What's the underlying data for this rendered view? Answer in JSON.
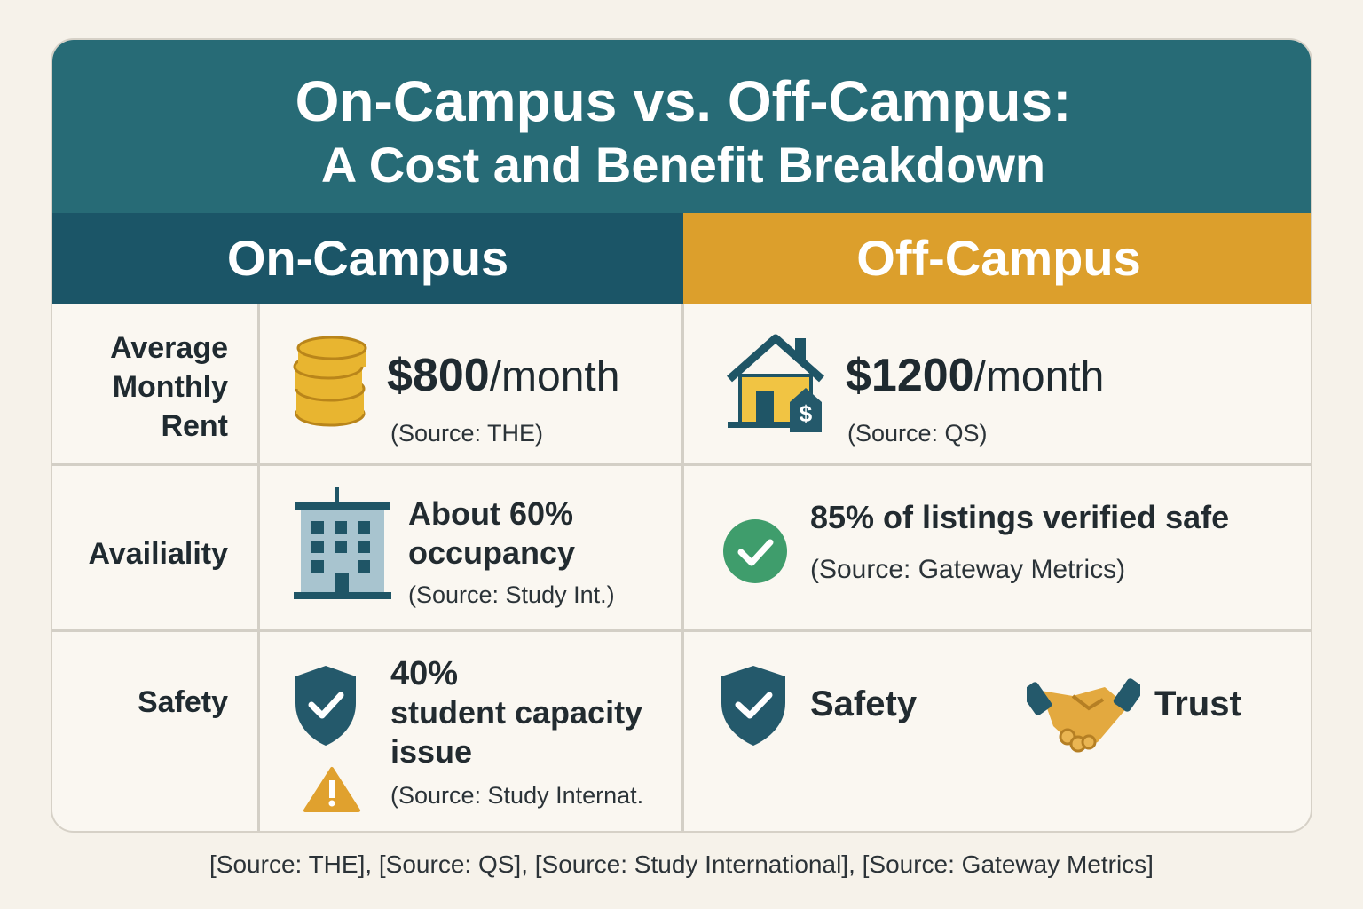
{
  "header": {
    "title": "On-Campus vs. Off-Campus:",
    "subtitle": "A Cost and Benefit Breakdown"
  },
  "columns": [
    "On-Campus",
    "Off-Campus"
  ],
  "rows": [
    {
      "label": "Average Monthly Rent",
      "on_campus": {
        "amount": "$800",
        "unit": "/month",
        "source": "(Source: THE)"
      },
      "off_campus": {
        "amount": "$1200",
        "unit": "/month",
        "source": "(Source: QS)"
      }
    },
    {
      "label": "Availiality",
      "on_campus": {
        "text": "About 60% occupancy",
        "source": "(Source: Study Int.)"
      },
      "off_campus": {
        "text": "85% of listings verified safe",
        "source": "(Source: Gateway Metrics)"
      }
    },
    {
      "label": "Safety",
      "on_campus": {
        "highlight": "40%",
        "text": "student capacity issue",
        "source": "(Source: Study Internat."
      },
      "off_campus": {
        "items": [
          "Safety",
          "Trust"
        ]
      }
    }
  ],
  "footer": "[Source: THE], [Source: QS], [Source: Study International], [Source: Gateway Metrics]"
}
